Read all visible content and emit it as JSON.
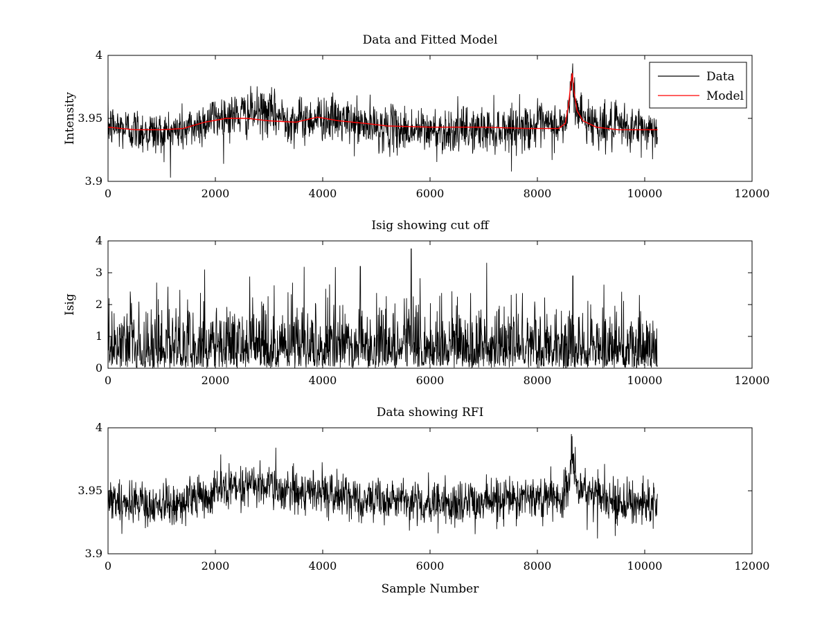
{
  "chart_data": [
    {
      "type": "line",
      "title": "Data and Fitted Model",
      "xlabel": "",
      "ylabel": "Intensity",
      "xlim": [
        0,
        12000
      ],
      "ylim": [
        3.9,
        4.0
      ],
      "xticks": [
        0,
        2000,
        4000,
        6000,
        8000,
        10000,
        12000
      ],
      "yticks": [
        3.9,
        3.95,
        4.0
      ],
      "ytick_labels": [
        "3.9",
        "3.95",
        "4"
      ],
      "grid": false,
      "legend": {
        "position": "top-right",
        "entries": [
          "Data",
          "Model"
        ]
      },
      "series": [
        {
          "name": "Data",
          "color": "#000000",
          "kind": "noisy",
          "x_range": [
            0,
            10240
          ],
          "noise_sd": 0.009,
          "baseline": [
            [
              0,
              3.944
            ],
            [
              1000,
              3.938
            ],
            [
              1500,
              3.942
            ],
            [
              2000,
              3.951
            ],
            [
              2900,
              3.955
            ],
            [
              3500,
              3.948
            ],
            [
              4000,
              3.951
            ],
            [
              4800,
              3.944
            ],
            [
              5500,
              3.941
            ],
            [
              6000,
              3.94
            ],
            [
              7000,
              3.941
            ],
            [
              8000,
              3.944
            ],
            [
              8500,
              3.944
            ],
            [
              8600,
              3.96
            ],
            [
              8650,
              3.985
            ],
            [
              8700,
              3.96
            ],
            [
              8900,
              3.949
            ],
            [
              9300,
              3.943
            ],
            [
              10240,
              3.941
            ]
          ]
        },
        {
          "name": "Model",
          "color": "#ff0000",
          "kind": "smooth",
          "points": [
            [
              0,
              3.943
            ],
            [
              500,
              3.941
            ],
            [
              1000,
              3.941
            ],
            [
              1400,
              3.942
            ],
            [
              1800,
              3.947
            ],
            [
              2200,
              3.95
            ],
            [
              2600,
              3.95
            ],
            [
              3000,
              3.948
            ],
            [
              3500,
              3.947
            ],
            [
              3900,
              3.951
            ],
            [
              4300,
              3.948
            ],
            [
              4800,
              3.946
            ],
            [
              5200,
              3.944
            ],
            [
              6000,
              3.943
            ],
            [
              7000,
              3.943
            ],
            [
              7800,
              3.942
            ],
            [
              8400,
              3.942
            ],
            [
              8520,
              3.946
            ],
            [
              8580,
              3.96
            ],
            [
              8620,
              3.977
            ],
            [
              8650,
              3.986
            ],
            [
              8680,
              3.972
            ],
            [
              8740,
              3.956
            ],
            [
              8850,
              3.948
            ],
            [
              9100,
              3.943
            ],
            [
              9500,
              3.941
            ],
            [
              10240,
              3.941
            ]
          ]
        }
      ]
    },
    {
      "type": "line",
      "title": "Isig showing cut off",
      "xlabel": "",
      "ylabel": "Isig",
      "xlim": [
        0,
        12000
      ],
      "ylim": [
        0,
        4
      ],
      "xticks": [
        0,
        2000,
        4000,
        6000,
        8000,
        10000,
        12000
      ],
      "yticks": [
        0,
        1,
        2,
        3,
        4
      ],
      "ytick_labels": [
        "0",
        "1",
        "2",
        "3",
        "4"
      ],
      "grid": false,
      "series": [
        {
          "name": "Isig",
          "color": "#000000",
          "kind": "abs-noise",
          "x_range": [
            0,
            10240
          ],
          "noise_sd": 0.95,
          "spikes": [
            [
              1800,
              3.1
            ],
            [
              4700,
              3.2
            ],
            [
              5650,
              3.75
            ],
            [
              8660,
              2.9
            ]
          ]
        }
      ]
    },
    {
      "type": "line",
      "title": "Data showing RFI",
      "xlabel": "Sample Number",
      "ylabel": "",
      "xlim": [
        0,
        12000
      ],
      "ylim": [
        3.9,
        4.0
      ],
      "xticks": [
        0,
        2000,
        4000,
        6000,
        8000,
        10000,
        12000
      ],
      "yticks": [
        3.9,
        3.95,
        4.0
      ],
      "ytick_labels": [
        "3.9",
        "3.95",
        "4"
      ],
      "grid": false,
      "series": [
        {
          "name": "Data",
          "color": "#000000",
          "kind": "noisy",
          "x_range": [
            0,
            10240
          ],
          "noise_sd": 0.009,
          "baseline": [
            [
              0,
              3.944
            ],
            [
              1000,
              3.938
            ],
            [
              1500,
              3.942
            ],
            [
              2000,
              3.951
            ],
            [
              2900,
              3.955
            ],
            [
              3500,
              3.948
            ],
            [
              4000,
              3.951
            ],
            [
              4800,
              3.944
            ],
            [
              5500,
              3.941
            ],
            [
              6000,
              3.94
            ],
            [
              7000,
              3.941
            ],
            [
              8000,
              3.944
            ],
            [
              8500,
              3.944
            ],
            [
              8600,
              3.96
            ],
            [
              8650,
              3.985
            ],
            [
              8700,
              3.96
            ],
            [
              8900,
              3.949
            ],
            [
              9300,
              3.943
            ],
            [
              10240,
              3.941
            ]
          ]
        }
      ]
    }
  ]
}
